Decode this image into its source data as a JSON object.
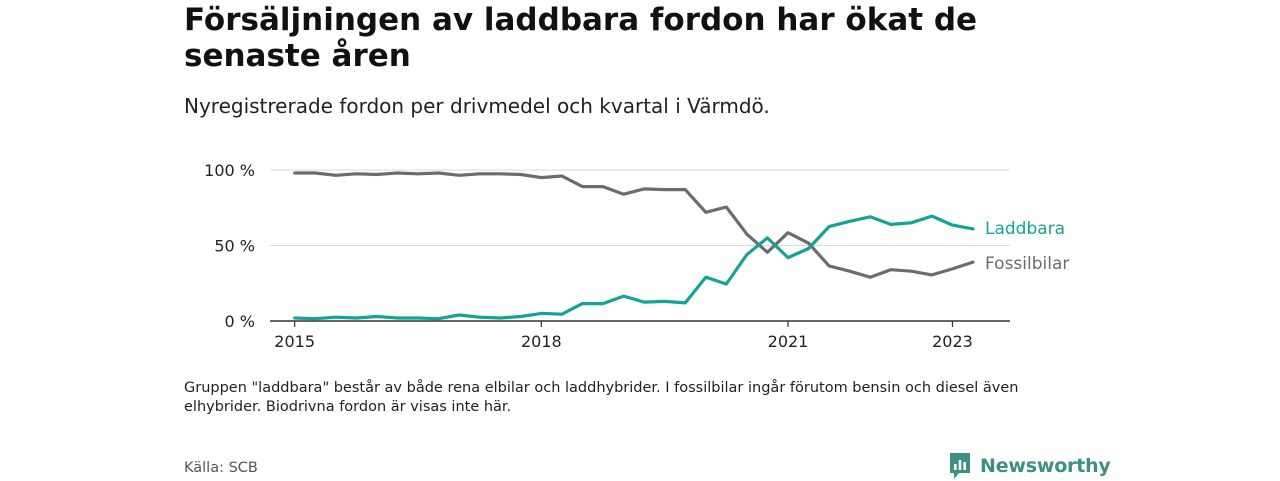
{
  "header": {
    "title": "Försäljningen av laddbara fordon har ökat de senaste åren",
    "subtitle": "Nyregistrerade fordon per drivmedel och kvartal i Värmdö."
  },
  "footer": {
    "note": "Gruppen \"laddbara\" består av både rena elbilar och laddhybrider. I fossilbilar ingår förutom bensin och diesel även elhybrider. Biodrivna fordon är visas inte här.",
    "source": "Källa: SCB",
    "brand": "Newsworthy"
  },
  "colors": {
    "laddbara": "#14a396",
    "fossilbilar": "#6e6a73",
    "grid": "#d9d9d9",
    "axis": "#333333",
    "brand": "#3d8f85"
  },
  "chart_data": {
    "type": "line",
    "title": "Försäljningen av laddbara fordon har ökat de senaste åren",
    "subtitle": "Nyregistrerade fordon per drivmedel och kvartal i Värmdö.",
    "xlabel": "",
    "ylabel": "",
    "x_start": 2015.0,
    "x_step": 0.25,
    "xlim": [
      2014.7,
      2023.7
    ],
    "ylim": [
      0,
      100
    ],
    "y_ticks": [
      0,
      50,
      100
    ],
    "y_tick_labels": [
      "0 %",
      "50 %",
      "100 %"
    ],
    "x_ticks": [
      2015,
      2018,
      2021,
      2023
    ],
    "x_tick_labels": [
      "2015",
      "2018",
      "2021",
      "2023"
    ],
    "grid": true,
    "legend": "line-end labels",
    "series": [
      {
        "name": "Laddbara",
        "color": "#14a396",
        "values": [
          2,
          1.5,
          2.5,
          2,
          3,
          2,
          2,
          1.5,
          4,
          2.5,
          2,
          3,
          5,
          4.5,
          11.5,
          11.5,
          16.5,
          12.5,
          13,
          12,
          29,
          24.5,
          44,
          55,
          42,
          48,
          62.5,
          66,
          69,
          64,
          65,
          69.5,
          63.5,
          61
        ]
      },
      {
        "name": "Fossilbilar",
        "color": "#6e6a73",
        "values": [
          98,
          98,
          96.5,
          97.5,
          97,
          98,
          97.5,
          98,
          96.5,
          97.5,
          97.5,
          97,
          95,
          96,
          89,
          89,
          84,
          87.5,
          87,
          87,
          72,
          75.5,
          57.5,
          45.5,
          58.5,
          51.5,
          36.5,
          33,
          29,
          34,
          33,
          30.5,
          34.5,
          39
        ]
      }
    ]
  }
}
